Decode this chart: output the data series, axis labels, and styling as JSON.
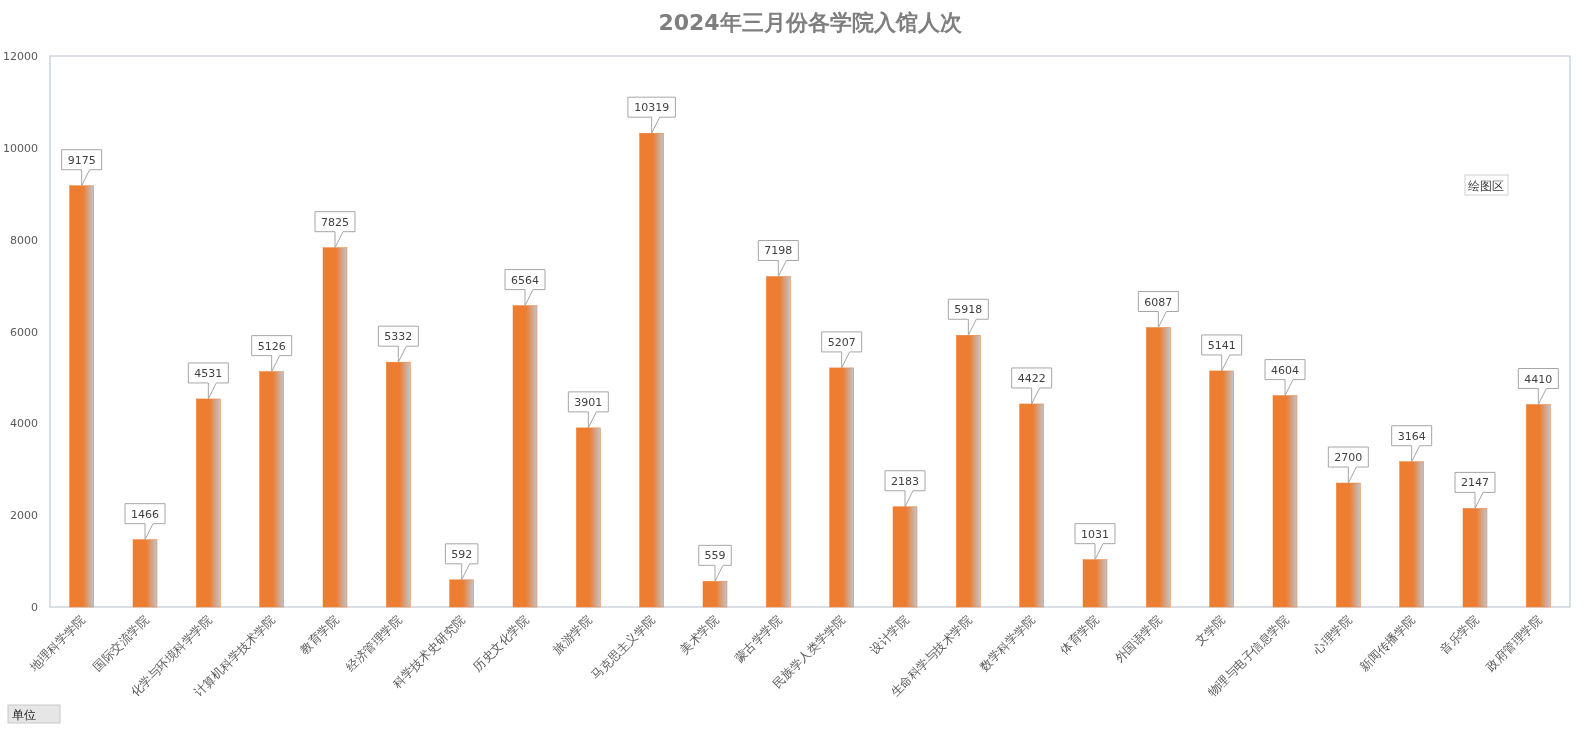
{
  "chart_data": {
    "type": "bar",
    "title": "2024年三月份各学院入馆人次",
    "categories": [
      "地理科学学院",
      "国际交流学院",
      "化学与环境科学学院",
      "计算机科学技术学院",
      "教育学院",
      "经济管理学院",
      "科学技术史研究院",
      "历史文化学院",
      "旅游学院",
      "马克思主义学院",
      "美术学院",
      "蒙古学学院",
      "民族学人类学学院",
      "设计学院",
      "生命科学与技术学院",
      "数学科学学院",
      "体育学院",
      "外国语学院",
      "文学院",
      "物理与电子信息学院",
      "心理学院",
      "新闻传播学院",
      "音乐学院",
      "政府管理学院"
    ],
    "values": [
      9175,
      1466,
      4531,
      5126,
      7825,
      5332,
      592,
      6564,
      3901,
      10319,
      559,
      7198,
      5207,
      2183,
      5918,
      4422,
      1031,
      6087,
      5141,
      4604,
      2700,
      3164,
      2147,
      4410
    ],
    "color": "#ed7d31",
    "ylim": [
      0,
      12000
    ],
    "yticks": [
      0,
      2000,
      4000,
      6000,
      8000,
      10000,
      12000
    ],
    "data_labels": true,
    "annotations": [
      "绘图区",
      "单位"
    ]
  }
}
